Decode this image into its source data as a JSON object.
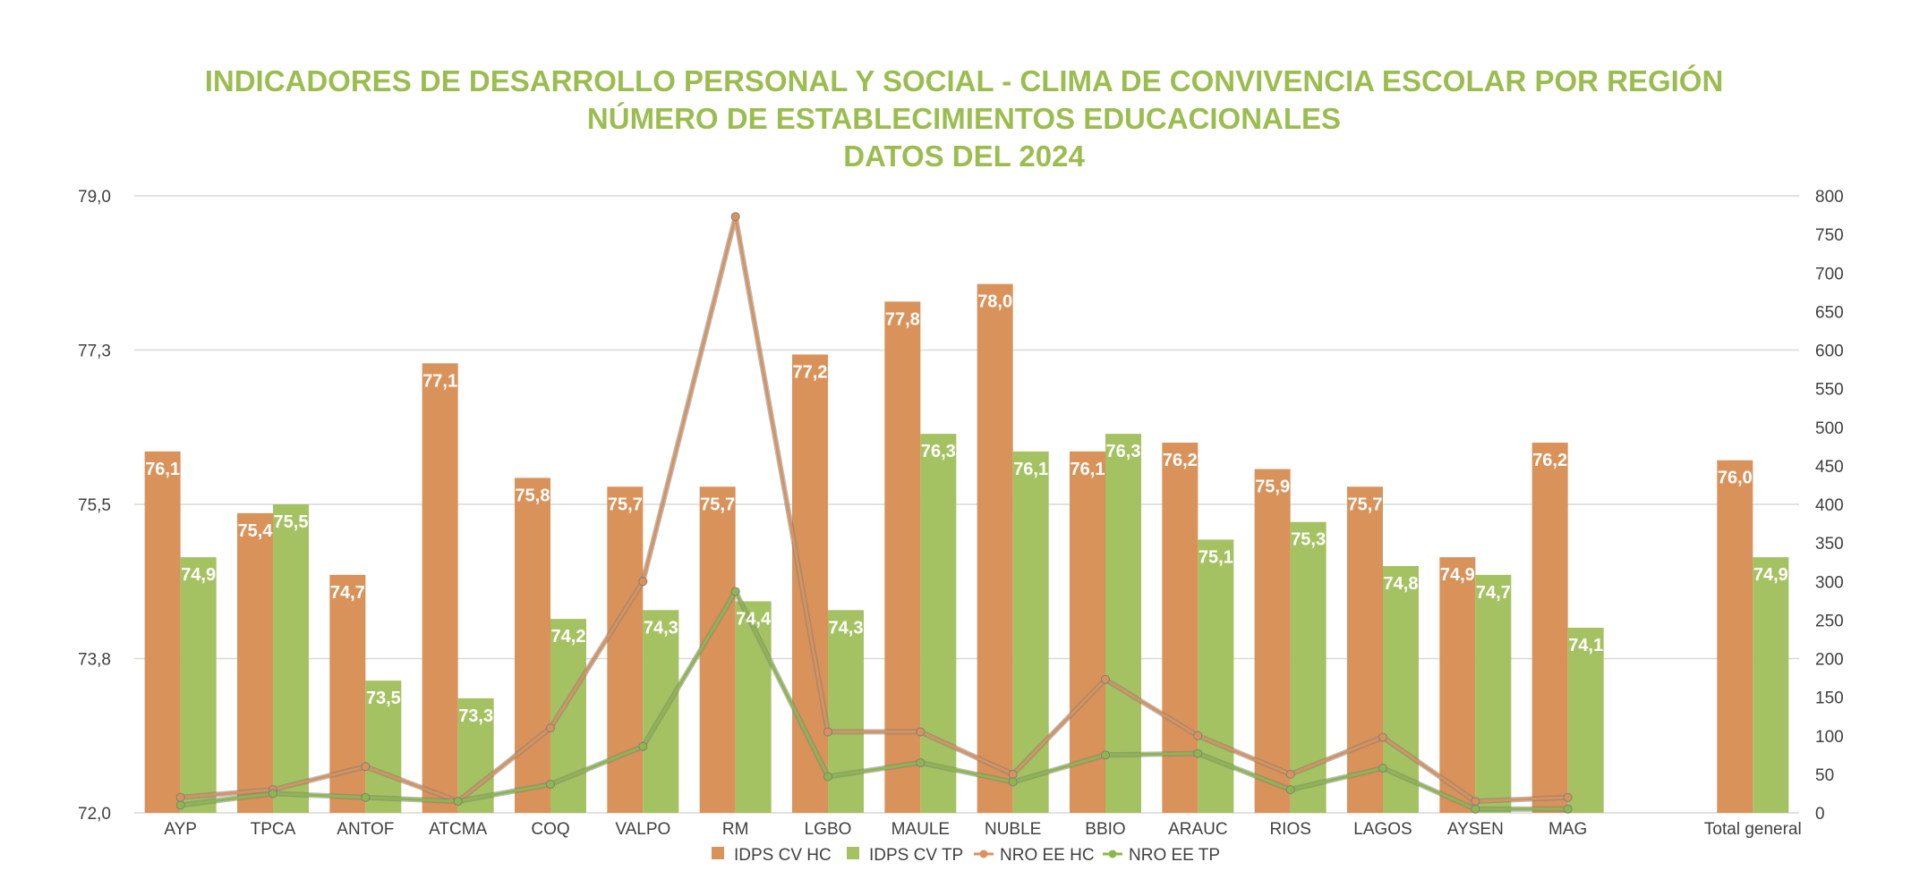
{
  "chart_data": {
    "type": "bar",
    "title": [
      "INDICADORES DE DESARROLLO PERSONAL Y SOCIAL - CLIMA DE CONVIVENCIA ESCOLAR  POR REGIÓN",
      "NÚMERO DE ESTABLECIMIENTOS EDUCACIONALES",
      "DATOS DEL 2024"
    ],
    "categories": [
      "AYP",
      "TPCA",
      "ANTOF",
      "ATCMA",
      "COQ",
      "VALPO",
      "RM",
      "LGBO",
      "MAULE",
      "NUBLE",
      "BBIO",
      "ARAUC",
      "RIOS",
      "LAGOS",
      "AYSEN",
      "MAG",
      "",
      "Total general"
    ],
    "y_left": {
      "ylim": [
        72.0,
        79.0
      ],
      "ticks": [
        "72,0",
        "73,8",
        "75,5",
        "77,3",
        "79,0"
      ],
      "tick_values": [
        72.0,
        73.75,
        75.5,
        77.25,
        79.0
      ]
    },
    "y_right": {
      "ylim": [
        0,
        800
      ],
      "ticks": [
        "0",
        "50",
        "100",
        "150",
        "200",
        "250",
        "300",
        "350",
        "400",
        "450",
        "500",
        "550",
        "600",
        "650",
        "700",
        "750",
        "800"
      ]
    },
    "series": [
      {
        "name": "IDPS CV HC",
        "kind": "bar",
        "axis": "left",
        "color": "#d9925a",
        "values": [
          76.1,
          75.4,
          74.7,
          77.1,
          75.8,
          75.7,
          75.7,
          77.2,
          77.8,
          78.0,
          76.1,
          76.2,
          75.9,
          75.7,
          74.9,
          76.2,
          null,
          76.0
        ],
        "labels": [
          "76,1",
          "75,4",
          "74,7",
          "77,1",
          "75,8",
          "75,7",
          "75,7",
          "77,2",
          "77,8",
          "78,0",
          "76,1",
          "76,2",
          "75,9",
          "75,7",
          "74,9",
          "76,2",
          "",
          "76,0"
        ]
      },
      {
        "name": "IDPS CV TP",
        "kind": "bar",
        "axis": "left",
        "color": "#a5c262",
        "values": [
          74.9,
          75.5,
          73.5,
          73.3,
          74.2,
          74.3,
          74.4,
          74.3,
          76.3,
          76.1,
          76.3,
          75.1,
          75.3,
          74.8,
          74.7,
          74.1,
          null,
          74.9
        ],
        "labels": [
          "74,9",
          "75,5",
          "73,5",
          "73,3",
          "74,2",
          "74,3",
          "74,4",
          "74,3",
          "76,3",
          "76,1",
          "76,3",
          "75,1",
          "75,3",
          "74,8",
          "74,7",
          "74,1",
          "",
          "74,9"
        ]
      },
      {
        "name": "NRO EE HC",
        "kind": "line",
        "axis": "right",
        "color": "#d9925a",
        "values": [
          20,
          30,
          60,
          15,
          110,
          300,
          773,
          105,
          105,
          50,
          173,
          100,
          50,
          98,
          15,
          20,
          null,
          null
        ]
      },
      {
        "name": "NRO EE TP",
        "kind": "line",
        "axis": "right",
        "color": "#8cb84a",
        "values": [
          10,
          25,
          20,
          15,
          37,
          86,
          287,
          47,
          65,
          40,
          75,
          77,
          30,
          58,
          5,
          5,
          null,
          null
        ]
      }
    ],
    "legend": [
      "IDPS CV HC",
      "IDPS CV TP",
      "NRO EE HC",
      "NRO EE TP"
    ],
    "legend_position": "bottom-center",
    "grid": true
  }
}
